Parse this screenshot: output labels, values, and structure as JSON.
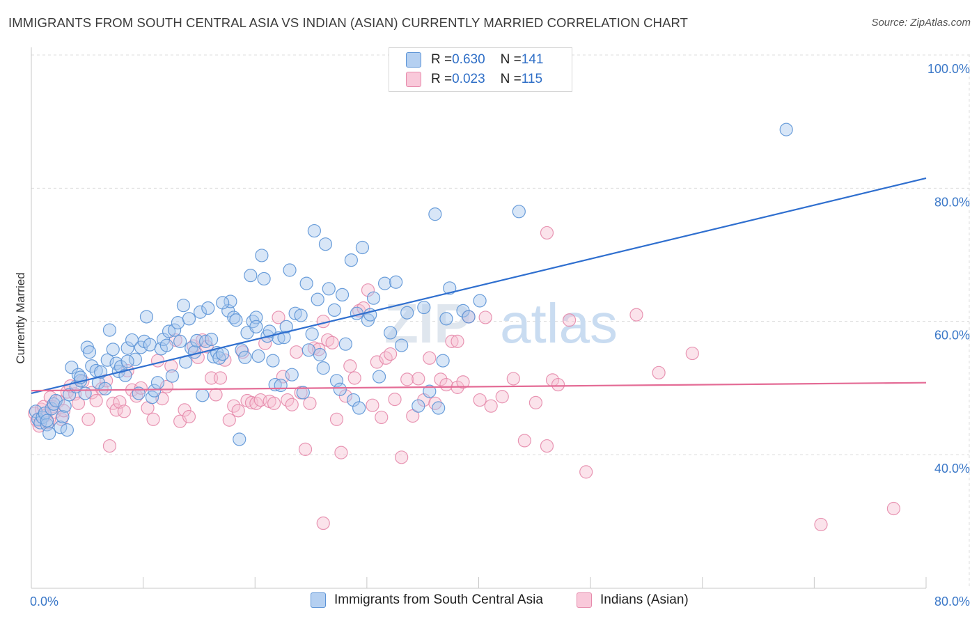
{
  "title": "IMMIGRANTS FROM SOUTH CENTRAL ASIA VS INDIAN (ASIAN) CURRENTLY MARRIED CORRELATION CHART",
  "source": "Source: ZipAtlas.com",
  "watermark": {
    "zip": "ZIP",
    "atlas": "atlas"
  },
  "colors": {
    "blue_fill": "#a9c8ee",
    "blue_stroke": "#5b93d6",
    "blue_line": "#2f6fcf",
    "pink_fill": "#f6c0d3",
    "pink_stroke": "#e68aab",
    "pink_line": "#e46c96",
    "grid": "#dcdcdc",
    "axis_text": "#3b78c8"
  },
  "legend": [
    {
      "r_label": "R = ",
      "r_value": "0.630",
      "n_label": "N = ",
      "n_value": "141"
    },
    {
      "r_label": "R = ",
      "r_value": "0.023",
      "n_label": "N = ",
      "n_value": "115"
    }
  ],
  "chart_data": {
    "type": "scatter",
    "title": "IMMIGRANTS FROM SOUTH CENTRAL ASIA VS INDIAN (ASIAN) CURRENTLY MARRIED CORRELATION CHART",
    "xlabel": "",
    "ylabel": "Currently Married",
    "xlim": [
      0,
      80
    ],
    "ylim": [
      20,
      100
    ],
    "x_tick_labels": [
      "0.0%",
      "80.0%"
    ],
    "y_ticks": [
      100,
      80,
      60,
      40
    ],
    "y_tick_labels": [
      "100.0%",
      "80.0%",
      "60.0%",
      "40.0%"
    ],
    "legend_position": "top-center",
    "series": [
      {
        "name": "Immigrants from South Central Asia",
        "color": "#5b93d6",
        "r": 0.63,
        "n": 141,
        "trend": {
          "x": [
            0,
            80
          ],
          "y": [
            49.2,
            81.5
          ]
        },
        "points": [
          [
            0.4,
            46.5
          ],
          [
            0.6,
            45.3
          ],
          [
            0.8,
            44.8
          ],
          [
            1.0,
            45.6
          ],
          [
            1.2,
            46.2
          ],
          [
            1.4,
            44.5
          ],
          [
            1.6,
            43.2
          ],
          [
            1.8,
            46.9
          ],
          [
            2.0,
            47.6
          ],
          [
            2.2,
            48.1
          ],
          [
            2.6,
            44.1
          ],
          [
            2.8,
            45.7
          ],
          [
            3.0,
            47.3
          ],
          [
            3.2,
            43.7
          ],
          [
            3.4,
            49.0
          ],
          [
            3.6,
            53.1
          ],
          [
            4.0,
            50.2
          ],
          [
            4.2,
            52.0
          ],
          [
            4.4,
            51.1
          ],
          [
            4.8,
            49.2
          ],
          [
            5.0,
            56.1
          ],
          [
            5.2,
            55.4
          ],
          [
            5.4,
            53.3
          ],
          [
            5.8,
            52.6
          ],
          [
            6.0,
            50.8
          ],
          [
            6.2,
            52.4
          ],
          [
            6.6,
            49.9
          ],
          [
            6.8,
            54.2
          ],
          [
            7.0,
            58.7
          ],
          [
            7.3,
            55.8
          ],
          [
            7.6,
            53.7
          ],
          [
            7.8,
            52.5
          ],
          [
            8.0,
            53.2
          ],
          [
            8.4,
            51.9
          ],
          [
            8.6,
            56.0
          ],
          [
            9.0,
            57.2
          ],
          [
            9.3,
            54.3
          ],
          [
            9.6,
            49.2
          ],
          [
            9.8,
            56.1
          ],
          [
            10.1,
            57.0
          ],
          [
            10.3,
            60.7
          ],
          [
            10.6,
            56.5
          ],
          [
            10.8,
            48.6
          ],
          [
            11.0,
            49.6
          ],
          [
            11.3,
            50.8
          ],
          [
            11.6,
            55.9
          ],
          [
            11.8,
            57.3
          ],
          [
            12.1,
            56.4
          ],
          [
            12.3,
            58.5
          ],
          [
            12.6,
            51.8
          ],
          [
            12.8,
            58.7
          ],
          [
            13.1,
            59.8
          ],
          [
            13.3,
            57.0
          ],
          [
            13.6,
            62.4
          ],
          [
            13.8,
            53.9
          ],
          [
            14.1,
            60.4
          ],
          [
            14.3,
            56.0
          ],
          [
            14.6,
            55.4
          ],
          [
            14.8,
            57.1
          ],
          [
            15.1,
            61.4
          ],
          [
            15.3,
            48.9
          ],
          [
            15.6,
            57.0
          ],
          [
            15.8,
            62.0
          ],
          [
            16.1,
            57.3
          ],
          [
            16.3,
            54.7
          ],
          [
            16.6,
            55.3
          ],
          [
            16.8,
            54.5
          ],
          [
            17.1,
            55.1
          ],
          [
            17.6,
            61.6
          ],
          [
            17.8,
            63.0
          ],
          [
            18.1,
            60.6
          ],
          [
            18.3,
            60.2
          ],
          [
            18.6,
            42.3
          ],
          [
            18.8,
            55.7
          ],
          [
            19.1,
            54.6
          ],
          [
            19.3,
            58.3
          ],
          [
            19.6,
            66.9
          ],
          [
            19.8,
            60.0
          ],
          [
            20.1,
            60.6
          ],
          [
            20.3,
            54.8
          ],
          [
            20.6,
            69.9
          ],
          [
            20.8,
            66.4
          ],
          [
            21.1,
            57.8
          ],
          [
            21.3,
            58.5
          ],
          [
            21.6,
            54.1
          ],
          [
            21.8,
            50.5
          ],
          [
            22.1,
            57.5
          ],
          [
            22.3,
            50.4
          ],
          [
            22.6,
            57.6
          ],
          [
            22.8,
            59.2
          ],
          [
            23.1,
            67.7
          ],
          [
            23.3,
            52.0
          ],
          [
            23.6,
            61.2
          ],
          [
            24.1,
            60.9
          ],
          [
            24.3,
            49.3
          ],
          [
            24.6,
            65.7
          ],
          [
            24.8,
            55.7
          ],
          [
            25.1,
            58.1
          ],
          [
            25.3,
            73.6
          ],
          [
            25.6,
            63.3
          ],
          [
            25.8,
            55.0
          ],
          [
            26.1,
            53.0
          ],
          [
            26.3,
            71.6
          ],
          [
            26.6,
            64.9
          ],
          [
            27.1,
            61.7
          ],
          [
            27.3,
            51.1
          ],
          [
            27.6,
            49.8
          ],
          [
            27.8,
            64.0
          ],
          [
            28.1,
            56.6
          ],
          [
            28.6,
            69.2
          ],
          [
            28.8,
            48.2
          ],
          [
            29.1,
            61.2
          ],
          [
            29.3,
            47.0
          ],
          [
            29.6,
            71.1
          ],
          [
            30.1,
            60.2
          ],
          [
            30.6,
            63.5
          ],
          [
            31.1,
            51.7
          ],
          [
            31.6,
            65.7
          ],
          [
            32.1,
            58.3
          ],
          [
            32.6,
            65.9
          ],
          [
            33.1,
            56.4
          ],
          [
            34.6,
            47.3
          ],
          [
            35.1,
            62.1
          ],
          [
            35.6,
            49.5
          ],
          [
            36.1,
            76.1
          ],
          [
            36.4,
            47.0
          ],
          [
            36.8,
            54.1
          ],
          [
            37.1,
            60.4
          ],
          [
            37.4,
            65.0
          ],
          [
            38.6,
            61.6
          ],
          [
            39.1,
            60.7
          ],
          [
            40.1,
            63.1
          ],
          [
            43.6,
            76.5
          ],
          [
            67.5,
            88.8
          ],
          [
            30.3,
            61.0
          ],
          [
            33.6,
            61.3
          ],
          [
            20.1,
            59.2
          ],
          [
            17.1,
            62.8
          ],
          [
            8.6,
            54.0
          ],
          [
            4.4,
            51.6
          ],
          [
            1.4,
            45.1
          ]
        ]
      },
      {
        "name": "Indians (Asian)",
        "color": "#e68aab",
        "r": 0.023,
        "n": 115,
        "trend": {
          "x": [
            0,
            80
          ],
          "y": [
            49.6,
            50.8
          ]
        },
        "points": [
          [
            0.3,
            46.2
          ],
          [
            0.5,
            45.1
          ],
          [
            0.7,
            44.3
          ],
          [
            0.9,
            46.8
          ],
          [
            1.1,
            47.2
          ],
          [
            1.3,
            45.9
          ],
          [
            1.5,
            44.8
          ],
          [
            1.7,
            48.6
          ],
          [
            1.9,
            47.2
          ],
          [
            2.1,
            46.4
          ],
          [
            2.4,
            48.0
          ],
          [
            2.7,
            45.3
          ],
          [
            2.9,
            46.6
          ],
          [
            3.2,
            49.4
          ],
          [
            3.5,
            50.3
          ],
          [
            3.9,
            49.1
          ],
          [
            4.2,
            47.7
          ],
          [
            4.6,
            51.0
          ],
          [
            5.1,
            45.3
          ],
          [
            5.4,
            49.3
          ],
          [
            5.8,
            48.1
          ],
          [
            6.3,
            49.9
          ],
          [
            6.7,
            51.1
          ],
          [
            7.0,
            41.3
          ],
          [
            7.3,
            47.7
          ],
          [
            7.6,
            46.7
          ],
          [
            7.9,
            47.9
          ],
          [
            8.3,
            46.5
          ],
          [
            8.6,
            52.6
          ],
          [
            9.0,
            49.7
          ],
          [
            9.4,
            48.8
          ],
          [
            9.8,
            50.0
          ],
          [
            10.4,
            47.0
          ],
          [
            10.9,
            45.3
          ],
          [
            11.3,
            54.1
          ],
          [
            11.7,
            48.4
          ],
          [
            12.1,
            50.2
          ],
          [
            12.5,
            53.3
          ],
          [
            12.9,
            57.2
          ],
          [
            13.3,
            45.0
          ],
          [
            13.7,
            46.7
          ],
          [
            14.1,
            45.7
          ],
          [
            14.5,
            56.3
          ],
          [
            14.9,
            54.6
          ],
          [
            15.3,
            57.2
          ],
          [
            15.7,
            56.2
          ],
          [
            16.1,
            51.5
          ],
          [
            16.5,
            49.0
          ],
          [
            16.9,
            51.5
          ],
          [
            17.3,
            54.2
          ],
          [
            17.7,
            45.2
          ],
          [
            18.1,
            47.3
          ],
          [
            18.5,
            46.6
          ],
          [
            18.9,
            55.4
          ],
          [
            19.3,
            48.1
          ],
          [
            19.7,
            47.8
          ],
          [
            20.1,
            47.7
          ],
          [
            20.5,
            48.2
          ],
          [
            20.9,
            56.7
          ],
          [
            21.3,
            48.0
          ],
          [
            21.7,
            47.7
          ],
          [
            22.1,
            60.6
          ],
          [
            22.5,
            51.7
          ],
          [
            22.9,
            48.2
          ],
          [
            23.3,
            47.5
          ],
          [
            23.7,
            55.4
          ],
          [
            24.1,
            49.3
          ],
          [
            24.5,
            40.8
          ],
          [
            24.9,
            47.7
          ],
          [
            25.3,
            56.0
          ],
          [
            25.7,
            55.8
          ],
          [
            26.1,
            60.0
          ],
          [
            26.5,
            57.2
          ],
          [
            26.9,
            56.8
          ],
          [
            27.3,
            45.3
          ],
          [
            27.7,
            40.3
          ],
          [
            28.1,
            48.8
          ],
          [
            28.5,
            53.3
          ],
          [
            28.9,
            51.5
          ],
          [
            29.3,
            61.6
          ],
          [
            29.7,
            62.0
          ],
          [
            30.1,
            64.7
          ],
          [
            30.5,
            47.4
          ],
          [
            30.9,
            53.9
          ],
          [
            31.3,
            45.6
          ],
          [
            31.7,
            54.5
          ],
          [
            32.1,
            55.1
          ],
          [
            32.5,
            48.3
          ],
          [
            33.1,
            39.6
          ],
          [
            33.6,
            51.3
          ],
          [
            34.1,
            45.8
          ],
          [
            34.6,
            51.4
          ],
          [
            35.1,
            48.2
          ],
          [
            35.6,
            54.5
          ],
          [
            36.1,
            47.7
          ],
          [
            36.6,
            51.3
          ],
          [
            37.1,
            50.5
          ],
          [
            37.6,
            57.0
          ],
          [
            38.1,
            50.1
          ],
          [
            38.6,
            50.9
          ],
          [
            39.1,
            60.7
          ],
          [
            40.1,
            48.2
          ],
          [
            41.1,
            47.3
          ],
          [
            42.1,
            48.7
          ],
          [
            43.1,
            51.4
          ],
          [
            44.1,
            42.1
          ],
          [
            45.1,
            47.8
          ],
          [
            46.1,
            41.3
          ],
          [
            46.6,
            51.2
          ],
          [
            47.1,
            50.5
          ],
          [
            48.1,
            60.2
          ],
          [
            49.6,
            37.4
          ],
          [
            54.1,
            61.0
          ],
          [
            56.1,
            52.3
          ],
          [
            59.1,
            55.2
          ]
        ]
      }
    ],
    "extra_points_pink": [
      [
        26.1,
        29.7
      ],
      [
        70.6,
        29.5
      ],
      [
        77.1,
        31.9
      ],
      [
        46.1,
        73.3
      ],
      [
        40.6,
        60.6
      ],
      [
        38.1,
        57.0
      ]
    ]
  },
  "bottom_legend": [
    {
      "label": "Immigrants from South Central Asia"
    },
    {
      "label": "Indians (Asian)"
    }
  ]
}
